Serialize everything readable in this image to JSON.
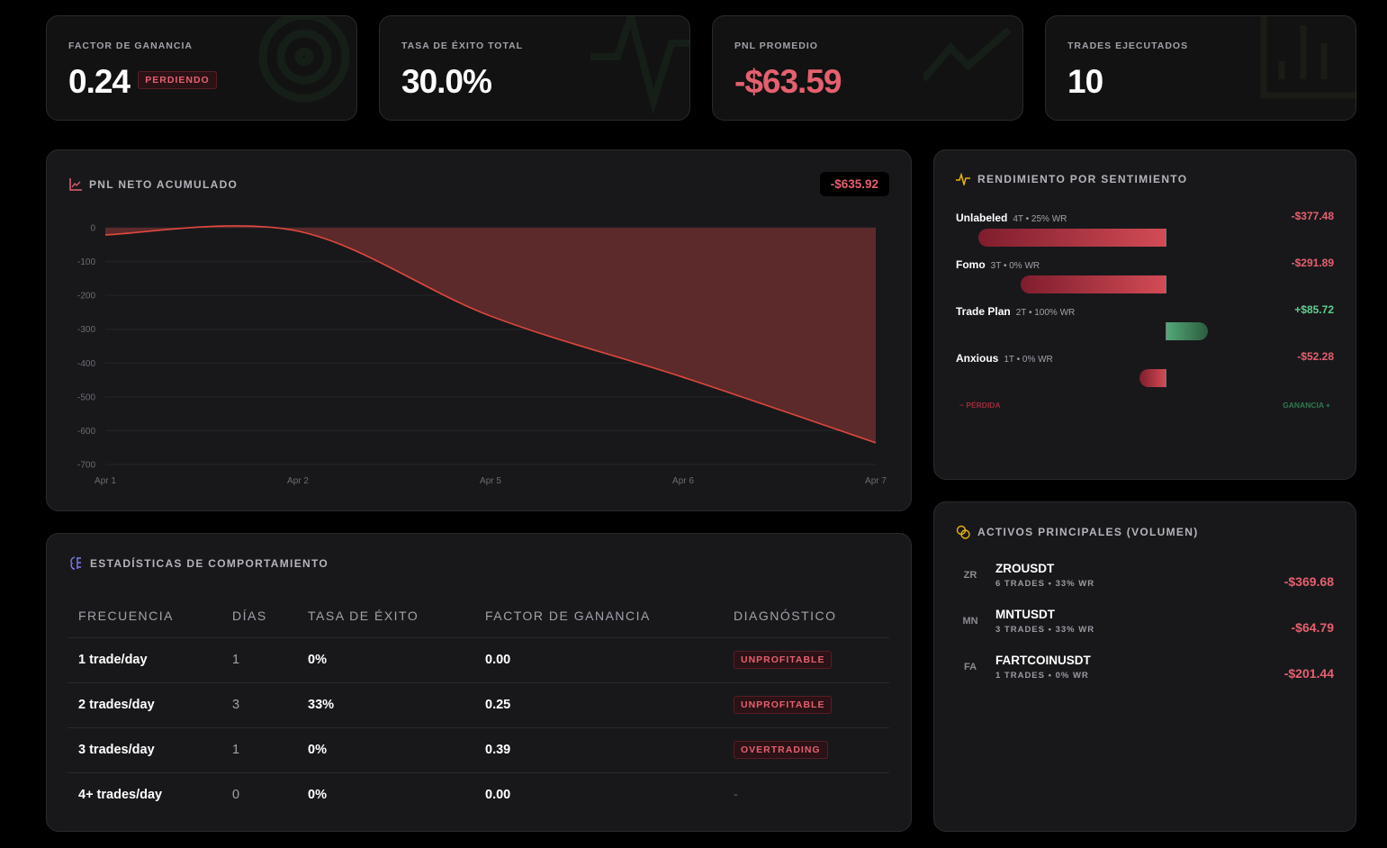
{
  "kpis": [
    {
      "label": "FACTOR DE GANANCIA",
      "value": "0.24",
      "badge": "PERDIENDO",
      "icon": "target-icon"
    },
    {
      "label": "TASA DE ÉXITO TOTAL",
      "value": "30.0%",
      "icon": "pulse-icon"
    },
    {
      "label": "PNL PROMEDIO",
      "value": "-$63.59",
      "icon": "trending-up-icon"
    },
    {
      "label": "TRADES EJECUTADOS",
      "value": "10",
      "icon": "bar-chart-icon"
    }
  ],
  "pnl_chart": {
    "title": "PNL NETO ACUMULADO",
    "total": "-$635.92"
  },
  "chart_data": {
    "type": "area",
    "categories": [
      "Apr 1",
      "Apr 2",
      "Apr 5",
      "Apr 6",
      "Apr 7"
    ],
    "values": [
      -21,
      -10,
      -261,
      -442,
      -635.92
    ],
    "yticks": [
      0,
      -100,
      -200,
      -300,
      -400,
      -500,
      -600,
      -700
    ],
    "ylim": [
      -700,
      0
    ],
    "grid": true,
    "colors": {
      "line": "#e0483e",
      "fill": "#5c2a2a"
    }
  },
  "sentiment": {
    "title": "RENDIMIENTO POR SENTIMIENTO",
    "items": [
      {
        "name": "Unlabeled",
        "meta": "4T • 25% WR",
        "amount": "-$377.48",
        "value": -377.48
      },
      {
        "name": "Fomo",
        "meta": "3T • 0% WR",
        "amount": "-$291.89",
        "value": -291.89
      },
      {
        "name": "Trade Plan",
        "meta": "2T • 100% WR",
        "amount": "+$85.72",
        "value": 85.72
      },
      {
        "name": "Anxious",
        "meta": "1T • 0% WR",
        "amount": "-$52.28",
        "value": -52.28
      }
    ],
    "loss_label": "− PÉRDIDA",
    "gain_label": "GANANCIA +"
  },
  "behavior": {
    "title": "ESTADÍSTICAS DE COMPORTAMIENTO",
    "headers": [
      "FRECUENCIA",
      "DÍAS",
      "TASA DE ÉXITO",
      "FACTOR DE GANANCIA",
      "DIAGNÓSTICO"
    ],
    "rows": [
      [
        "1 trade/day",
        "1",
        "0%",
        "0.00",
        "UNPROFITABLE"
      ],
      [
        "2 trades/day",
        "3",
        "33%",
        "0.25",
        "UNPROFITABLE"
      ],
      [
        "3 trades/day",
        "1",
        "0%",
        "0.39",
        "OVERTRADING"
      ],
      [
        "4+ trades/day",
        "0",
        "0%",
        "0.00",
        "-"
      ]
    ]
  },
  "assets": {
    "title": "ACTIVOS PRINCIPALES (VOLUMEN)",
    "items": [
      {
        "abbr": "ZR",
        "name": "ZROUSDT",
        "meta": "6 TRADES • 33% WR",
        "pnl": "-$369.68"
      },
      {
        "abbr": "MN",
        "name": "MNTUSDT",
        "meta": "3 TRADES • 33% WR",
        "pnl": "-$64.79"
      },
      {
        "abbr": "FA",
        "name": "FARTCOINUSDT",
        "meta": "1 TRADES • 0% WR",
        "pnl": "-$201.44"
      }
    ]
  }
}
